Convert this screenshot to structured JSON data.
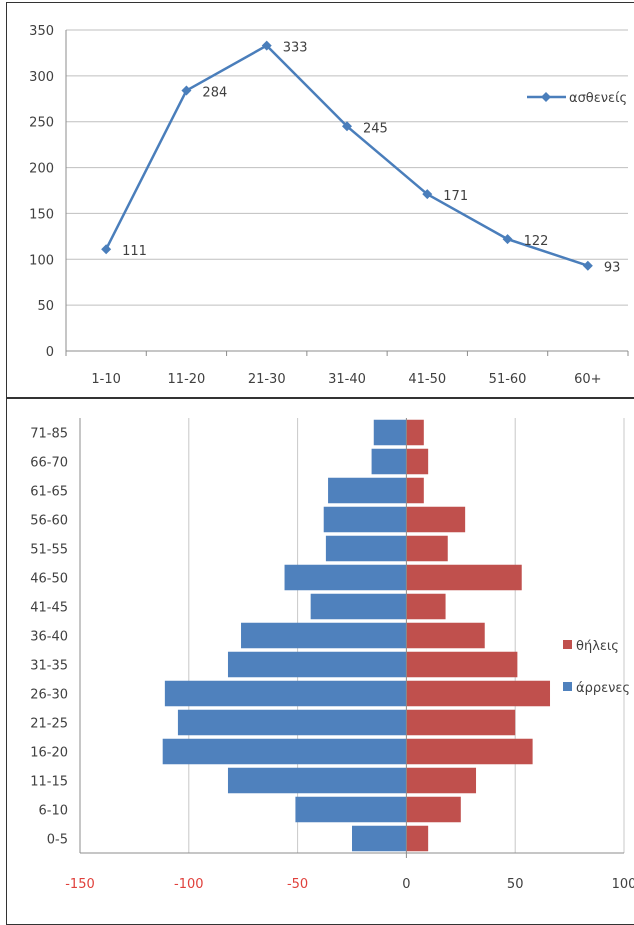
{
  "chart_data": [
    {
      "type": "line",
      "categories": [
        "1-10",
        "11-20",
        "21-30",
        "31-40",
        "41-50",
        "51-60",
        "60+"
      ],
      "series": [
        {
          "name": "ασθενείς",
          "values": [
            111,
            284,
            333,
            245,
            171,
            122,
            93
          ],
          "color": "#4a7ebb"
        }
      ],
      "ylim": [
        0,
        350
      ],
      "yticks": [
        0,
        50,
        100,
        150,
        200,
        250,
        300,
        350
      ],
      "data_labels": [
        "111",
        "284",
        "333",
        "245",
        "171",
        "122",
        "93"
      ],
      "grid": "horizontal",
      "legend_position": "right"
    },
    {
      "type": "bar",
      "orientation": "horizontal",
      "categories": [
        "71-85",
        "66-70",
        "61-65",
        "56-60",
        "51-55",
        "46-50",
        "41-45",
        "36-40",
        "31-35",
        "26-30",
        "21-25",
        "16-20",
        "11-15",
        "6-10",
        "0-5"
      ],
      "series": [
        {
          "name": "θήλεις",
          "values": [
            8,
            10,
            8,
            27,
            19,
            53,
            18,
            36,
            51,
            66,
            50,
            58,
            32,
            25,
            10
          ],
          "color": "#c0504d"
        },
        {
          "name": "άρρενες",
          "values": [
            -15,
            -16,
            -36,
            -38,
            -37,
            -56,
            -44,
            -76,
            -82,
            -111,
            -105,
            -112,
            -82,
            -51,
            -25
          ],
          "color": "#4f81bd"
        }
      ],
      "xlim": [
        -150,
        100
      ],
      "xticks": [
        "-150",
        "-100",
        "-50",
        "0",
        "50",
        "100"
      ],
      "grid": "vertical",
      "legend_position": "right"
    }
  ]
}
